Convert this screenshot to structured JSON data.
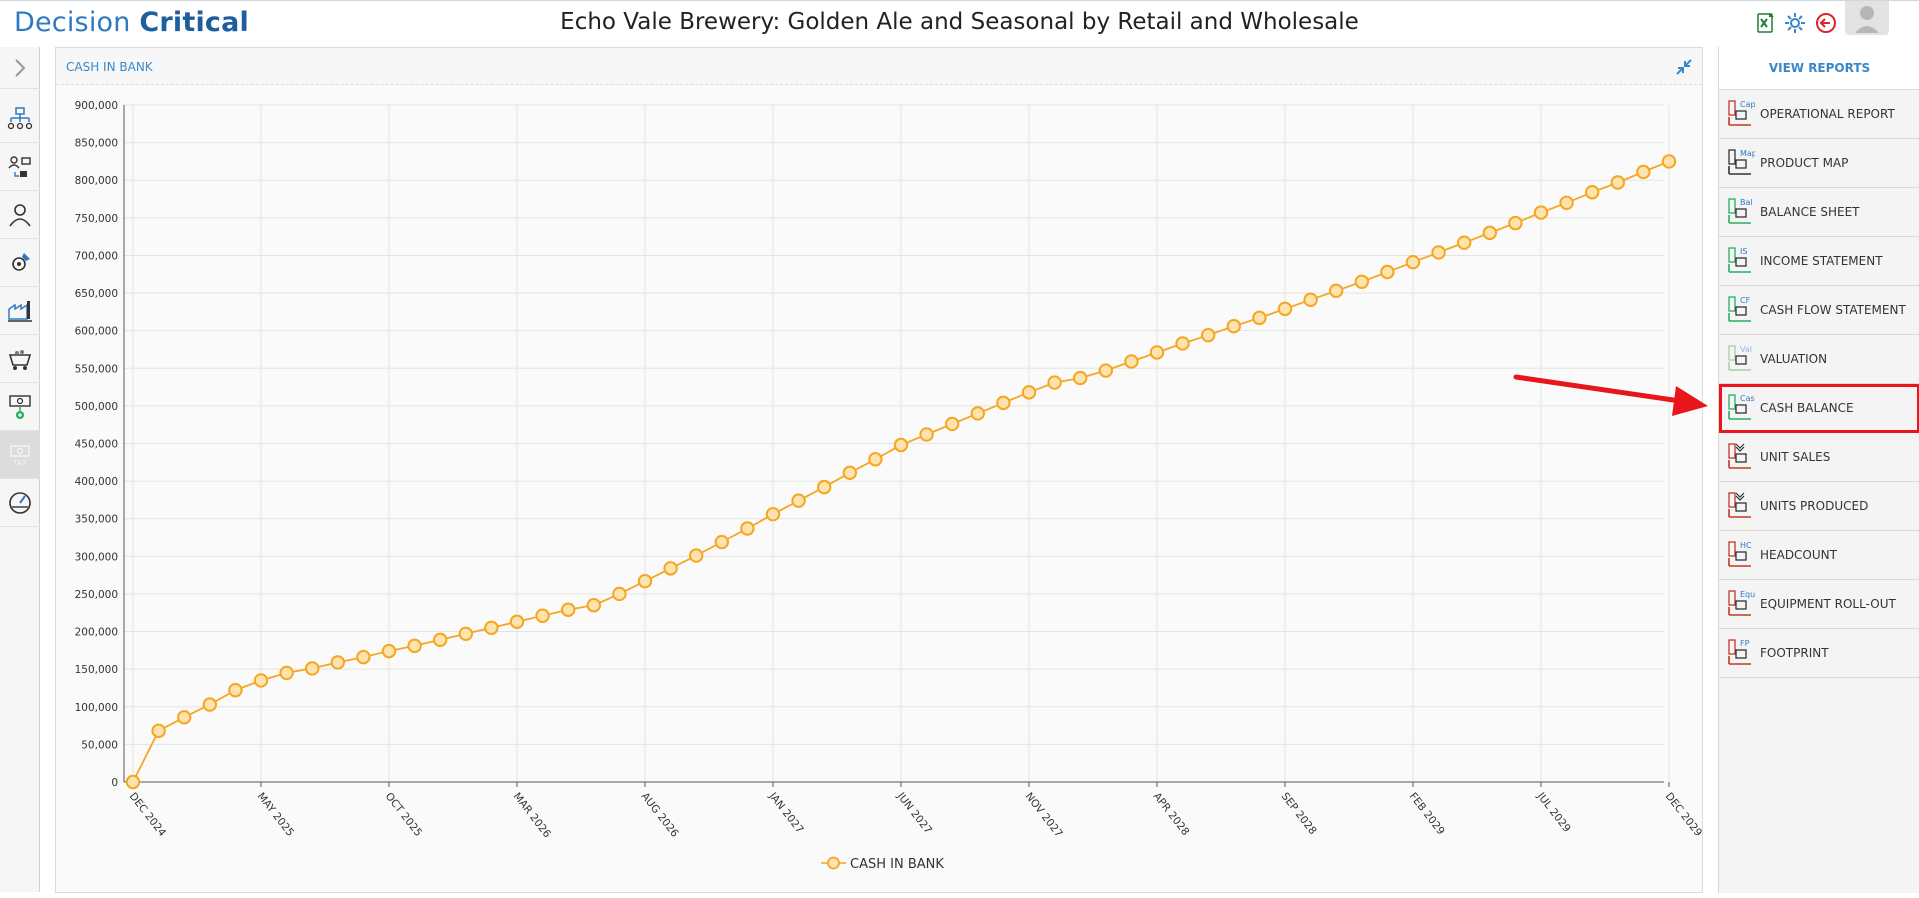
{
  "header": {
    "logo_part1": "Decision",
    "logo_part2": "Critical",
    "title": "Echo Vale Brewery: Golden Ale and Seasonal by Retail and Wholesale",
    "icons": [
      "excel-export-icon",
      "settings-icon",
      "back-icon",
      "user-avatar-icon"
    ]
  },
  "left_sidebar": {
    "items": [
      {
        "name": "expand-icon"
      },
      {
        "name": "org-chart-icon"
      },
      {
        "name": "workflow-icon"
      },
      {
        "name": "person-icon"
      },
      {
        "name": "tools-gear-icon"
      },
      {
        "name": "factory-icon"
      },
      {
        "name": "mining-cart-icon"
      },
      {
        "name": "cash-add-icon"
      },
      {
        "name": "tax-icon",
        "label": "TAX"
      },
      {
        "name": "dashboard-gauge-icon"
      }
    ]
  },
  "panel": {
    "title": "CASH IN BANK",
    "legend_label": "CASH IN BANK"
  },
  "chart_data": {
    "type": "line",
    "title": "",
    "xlabel": "",
    "ylabel": "",
    "ylim": [
      0,
      900000
    ],
    "y_ticks": [
      "0",
      "50,000",
      "100,000",
      "150,000",
      "200,000",
      "250,000",
      "300,000",
      "350,000",
      "400,000",
      "450,000",
      "500,000",
      "550,000",
      "600,000",
      "650,000",
      "700,000",
      "750,000",
      "800,000",
      "850,000",
      "900,000"
    ],
    "x_tick_labels": [
      "DEC 2024",
      "MAY 2025",
      "OCT 2025",
      "MAR 2026",
      "AUG 2026",
      "JAN 2027",
      "JUN 2027",
      "NOV 2027",
      "APR 2028",
      "SEP 2028",
      "FEB 2029",
      "JUL 2029",
      "DEC 2029"
    ],
    "grid": true,
    "legend_position": "bottom",
    "color": "#f5a623",
    "series": [
      {
        "name": "CASH IN BANK",
        "x_start": "DEC 2024",
        "x_step": "1 month",
        "values": [
          0,
          68000,
          86000,
          103000,
          122000,
          135000,
          145000,
          151000,
          159000,
          166000,
          174000,
          181000,
          189000,
          197000,
          205000,
          213000,
          221000,
          229000,
          235000,
          250000,
          267000,
          284000,
          301000,
          319000,
          337000,
          356000,
          374000,
          392000,
          411000,
          429000,
          448000,
          462000,
          476000,
          490000,
          504000,
          518000,
          531000,
          537000,
          547000,
          559000,
          571000,
          583000,
          594000,
          606000,
          617000,
          629000,
          641000,
          653000,
          665000,
          678000,
          691000,
          704000,
          717000,
          730000,
          743000,
          757000,
          770000,
          784000,
          797000,
          811000,
          825000
        ]
      }
    ]
  },
  "reports": {
    "header": "VIEW REPORTS",
    "items": [
      {
        "label": "OPERATIONAL REPORT",
        "icon": "operational-report-icon",
        "tag": "Cap",
        "tag_color": "#2f79c3",
        "color": "#c0392b"
      },
      {
        "label": "PRODUCT MAP",
        "icon": "product-map-icon",
        "tag": "Map",
        "tag_color": "#2f79c3",
        "color": "#333333"
      },
      {
        "label": "BALANCE SHEET",
        "icon": "balance-sheet-icon",
        "tag": "Bal",
        "tag_color": "#2f79c3",
        "color": "#27ae60"
      },
      {
        "label": "INCOME STATEMENT",
        "icon": "income-statement-icon",
        "tag": "IS",
        "tag_color": "#2f79c3",
        "color": "#27ae60"
      },
      {
        "label": "CASH FLOW STATEMENT",
        "icon": "cash-flow-statement-icon",
        "tag": "CF",
        "tag_color": "#2f79c3",
        "color": "#27ae60"
      },
      {
        "label": "VALUATION",
        "icon": "valuation-icon",
        "tag": "Val",
        "tag_color": "#9ab7d6",
        "color": "#a8cfa8"
      },
      {
        "label": "CASH BALANCE",
        "icon": "cash-balance-icon",
        "tag": "Cash",
        "tag_color": "#2f79c3",
        "color": "#27ae60",
        "highlighted": true
      },
      {
        "label": "UNIT SALES",
        "icon": "unit-sales-icon",
        "tag": "",
        "tag_color": "#2f79c3",
        "color": "#c0392b"
      },
      {
        "label": "UNITS PRODUCED",
        "icon": "units-produced-icon",
        "tag": "",
        "tag_color": "#2f79c3",
        "color": "#c0392b"
      },
      {
        "label": "HEADCOUNT",
        "icon": "headcount-icon",
        "tag": "HC",
        "tag_color": "#2f79c3",
        "color": "#c0392b"
      },
      {
        "label": "EQUIPMENT ROLL-OUT",
        "icon": "equipment-rollout-icon",
        "tag": "Equip",
        "tag_color": "#2f79c3",
        "color": "#c0392b"
      },
      {
        "label": "FOOTPRINT",
        "icon": "footprint-icon",
        "tag": "FP",
        "tag_color": "#2f79c3",
        "color": "#c0392b"
      }
    ]
  },
  "annotation": {
    "arrow_color": "#e8151b",
    "highlight_color": "#e8151b"
  }
}
